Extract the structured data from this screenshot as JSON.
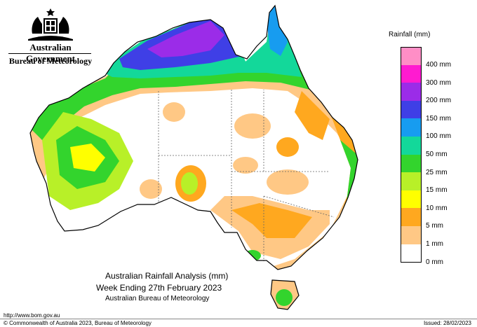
{
  "header": {
    "government": "Australian Government",
    "bureau": "Bureau of Meteorology"
  },
  "map": {
    "region": "Australia",
    "title_line1": "Australian Rainfall Analysis (mm)",
    "title_line2": "Week Ending 27th February 2023",
    "title_line3": "Australian Bureau of Meteorology"
  },
  "legend": {
    "title": "Rainfall (mm)",
    "items": [
      {
        "label": "400 mm",
        "color": "#ff8ec6"
      },
      {
        "label": "300 mm",
        "color": "#ff1bd0"
      },
      {
        "label": "200 mm",
        "color": "#9b2ce8"
      },
      {
        "label": "150 mm",
        "color": "#3f3fe6"
      },
      {
        "label": "100 mm",
        "color": "#179cf0"
      },
      {
        "label": "50 mm",
        "color": "#13d89a"
      },
      {
        "label": "25 mm",
        "color": "#33d42d"
      },
      {
        "label": "15 mm",
        "color": "#b8f028"
      },
      {
        "label": "10 mm",
        "color": "#ffff00"
      },
      {
        "label": "5 mm",
        "color": "#ffa81f"
      },
      {
        "label": "1 mm",
        "color": "#ffc885"
      },
      {
        "label": "0 mm",
        "color": "#ffffff"
      }
    ]
  },
  "footer": {
    "url": "http://www.bom.gov.au",
    "copyright": "© Commonwealth of Australia 2023, Bureau of Meteorology",
    "issued": "Issued: 28/02/2023"
  }
}
